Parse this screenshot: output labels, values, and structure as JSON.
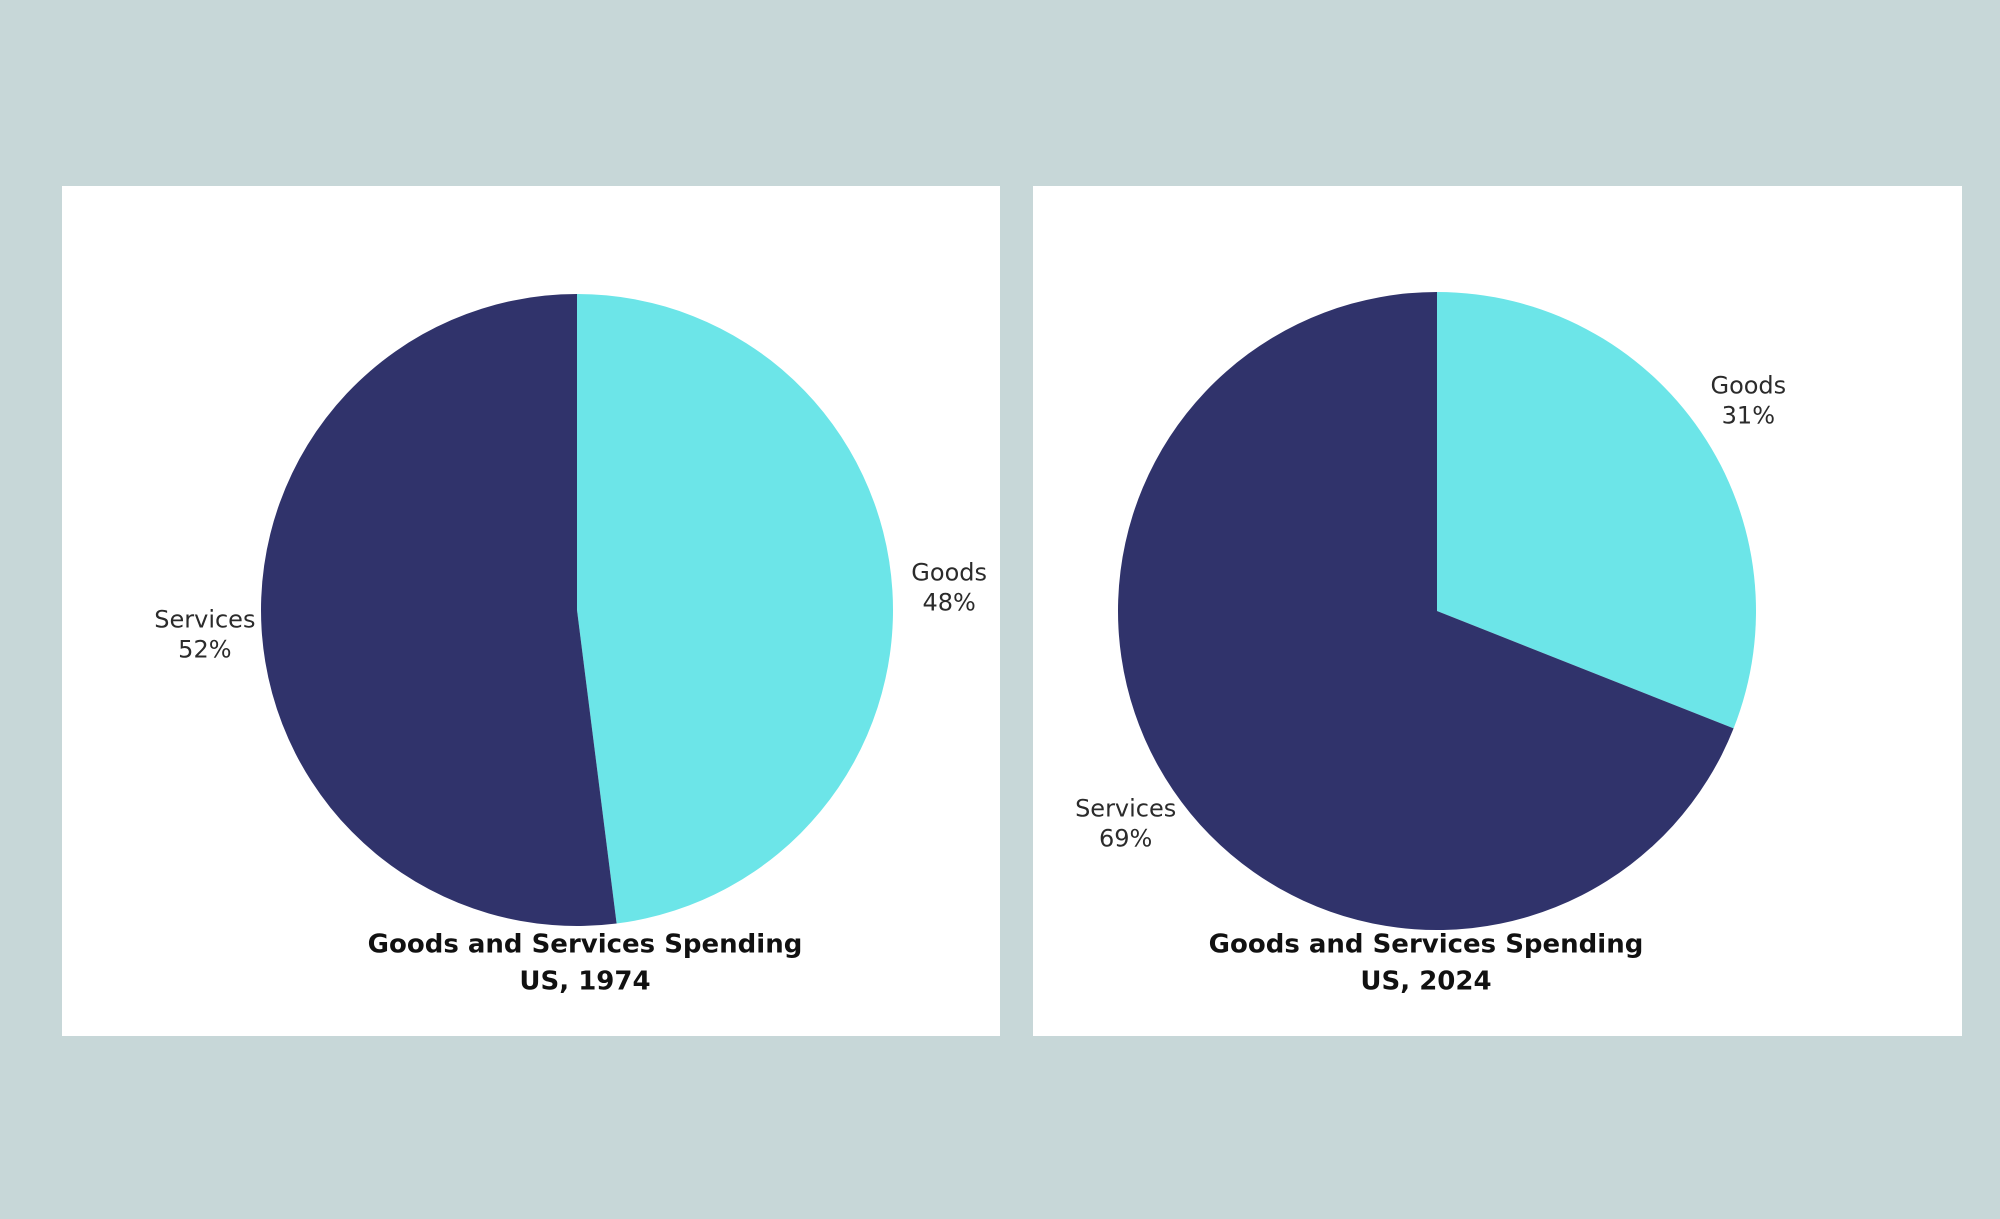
{
  "chart_data": [
    {
      "type": "pie",
      "title": "Goods and Services Spending",
      "subtitle": "US, 1974",
      "categories": [
        "Goods",
        "Services"
      ],
      "values": [
        48,
        52
      ],
      "value_labels": [
        "48%",
        "52%"
      ],
      "colors": [
        "#6ce5e8",
        "#30336b"
      ]
    },
    {
      "type": "pie",
      "title": "Goods and Services Spending",
      "subtitle": "US, 2024",
      "categories": [
        "Goods",
        "Services"
      ],
      "values": [
        31,
        69
      ],
      "value_labels": [
        "31%",
        "69%"
      ],
      "colors": [
        "#6ce5e8",
        "#30336b"
      ]
    }
  ]
}
